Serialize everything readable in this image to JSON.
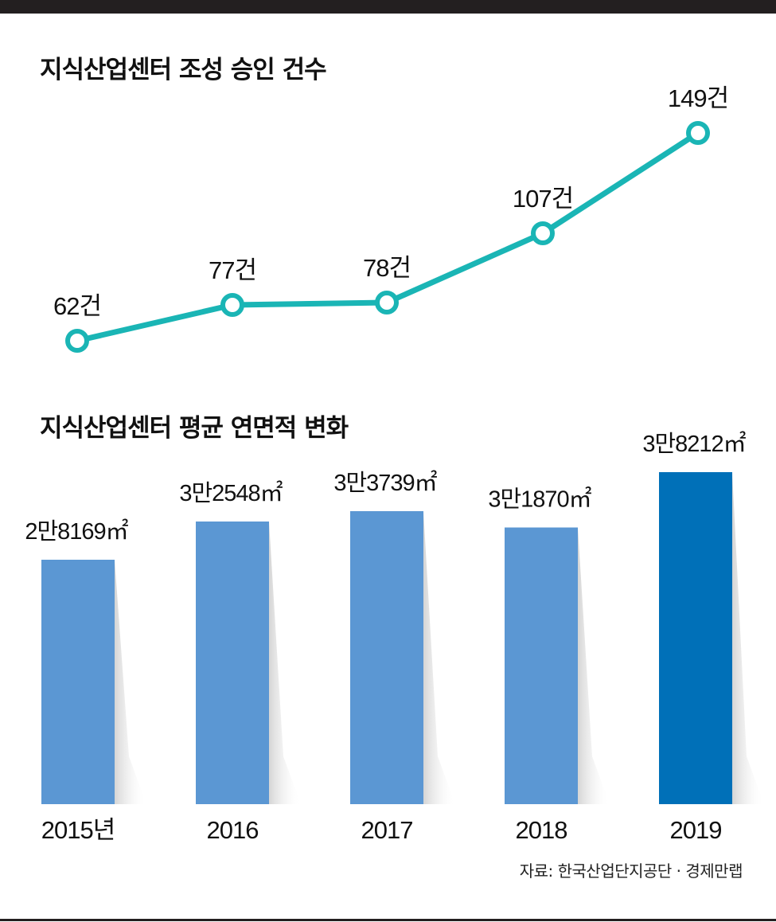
{
  "titles": {
    "line": "지식산업센터 조성 승인 건수",
    "bar": "지식산업센터 평균 연면적 변화"
  },
  "source": "자료: 한국산업단지공단 · 경제만랩",
  "colors": {
    "line": "#1ab5b5",
    "bar": "#5b97d3",
    "bar_highlight": "#0070b8",
    "frame": "#231f20"
  },
  "chart_data": [
    {
      "type": "line",
      "title": "지식산업센터 조성 승인 건수",
      "x": [
        "2015",
        "2016",
        "2017",
        "2018",
        "2019"
      ],
      "values": [
        62,
        77,
        78,
        107,
        149
      ],
      "data_labels": [
        "62건",
        "77건",
        "78건",
        "107건",
        "149건"
      ],
      "grid": false
    },
    {
      "type": "bar",
      "title": "지식산업센터 평균 연면적 변화",
      "categories": [
        "2015년",
        "2016",
        "2017",
        "2018",
        "2019"
      ],
      "values": [
        28169,
        32548,
        33739,
        31870,
        38212
      ],
      "data_labels": [
        "2만8169㎡",
        "3만2548㎡",
        "3만3739㎡",
        "3만1870㎡",
        "3만8212㎡"
      ],
      "highlight_index": 4,
      "grid": false
    }
  ]
}
